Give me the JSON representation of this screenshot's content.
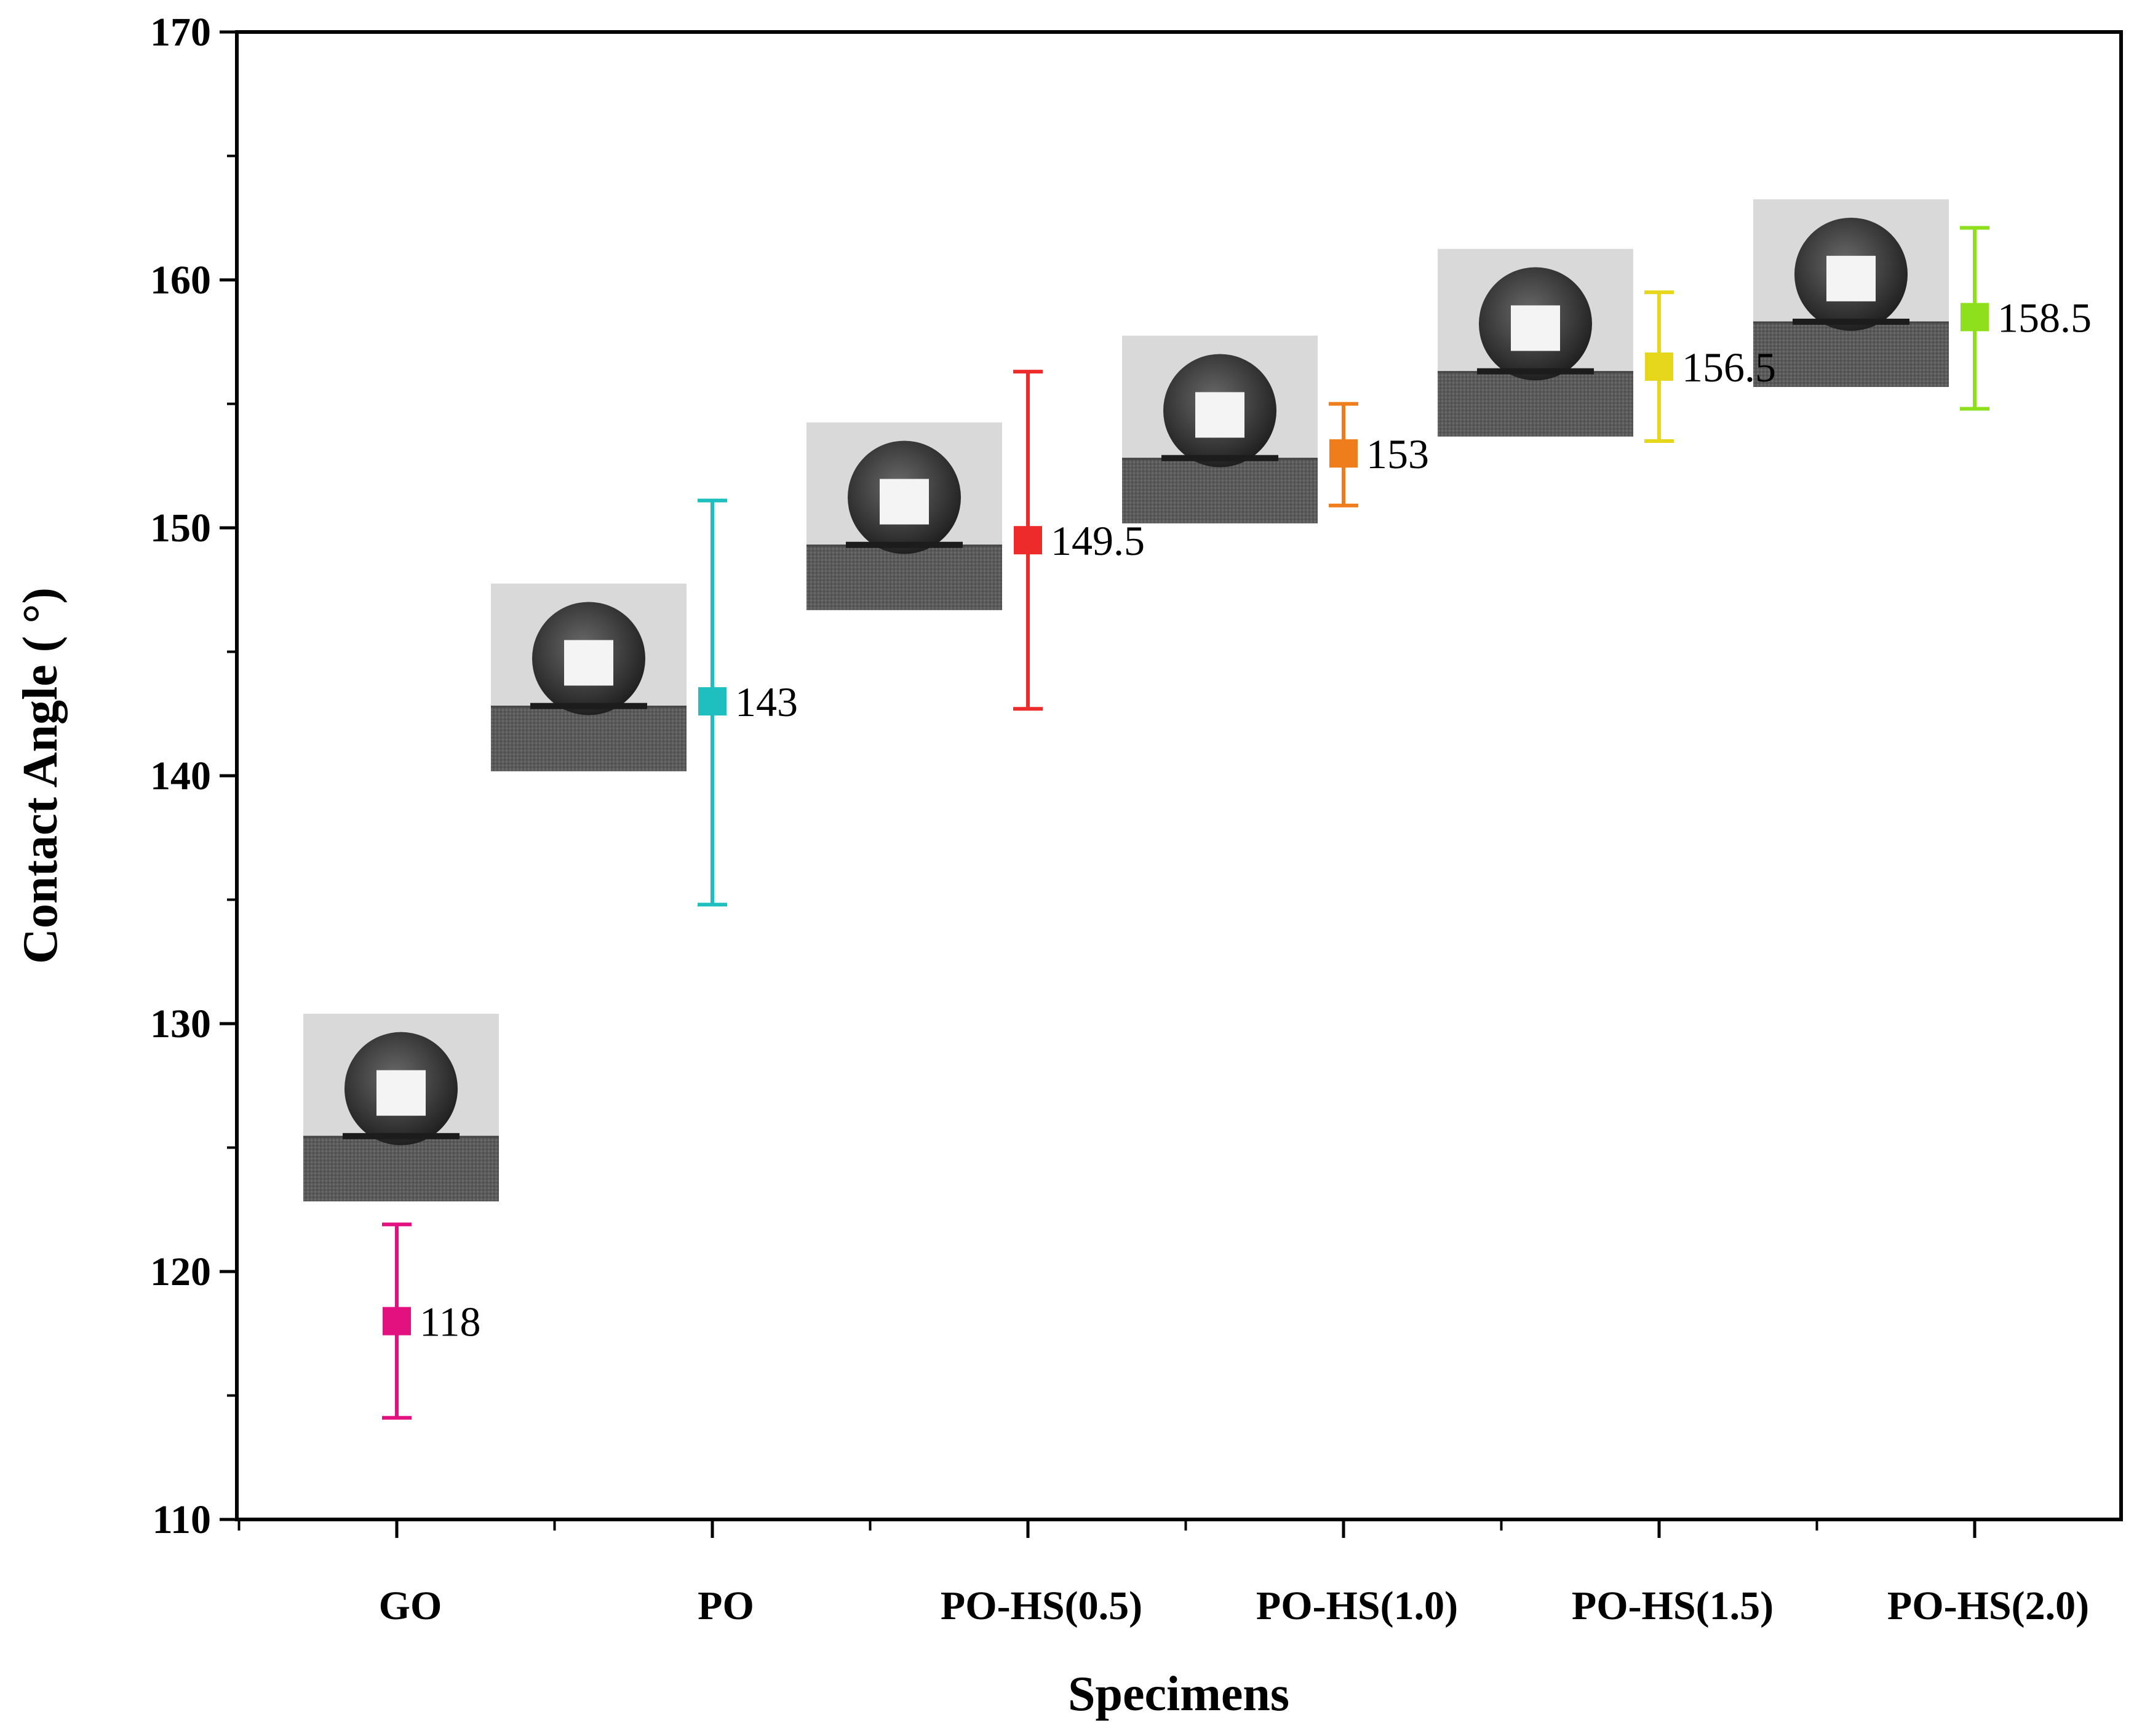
{
  "chart_data": {
    "type": "scatter",
    "title": "",
    "xlabel": "Specimens",
    "ylabel": "Contact Angle ( °)",
    "ylim": [
      110,
      170
    ],
    "yticks": [
      110,
      120,
      130,
      140,
      150,
      160,
      170
    ],
    "grid": false,
    "legend": "none",
    "categories": [
      "GO",
      "PO",
      "PO-HS(0.5)",
      "PO-HS(1.0)",
      "PO-HS(1.5)",
      "PO-HS(2.0)"
    ],
    "points": [
      {
        "category": "GO",
        "value": 118,
        "label": "118",
        "err_low": 114.1,
        "err_high": 121.9,
        "color": "#e3107f"
      },
      {
        "category": "PO",
        "value": 143,
        "label": "143",
        "err_low": 134.8,
        "err_high": 151.1,
        "color": "#1fbfbf"
      },
      {
        "category": "PO-HS(0.5)",
        "value": 149.5,
        "label": "149.5",
        "err_low": 142.7,
        "err_high": 156.3,
        "color": "#ee2b2b"
      },
      {
        "category": "PO-HS(1.0)",
        "value": 153,
        "label": "153",
        "err_low": 150.9,
        "err_high": 155.0,
        "color": "#f07d1c"
      },
      {
        "category": "PO-HS(1.5)",
        "value": 156.5,
        "label": "156.5",
        "err_low": 153.5,
        "err_high": 159.5,
        "color": "#e6d61c"
      },
      {
        "category": "PO-HS(2.0)",
        "value": 158.5,
        "label": "158.5",
        "err_low": 154.8,
        "err_high": 162.1,
        "color": "#8ee01c"
      }
    ]
  }
}
